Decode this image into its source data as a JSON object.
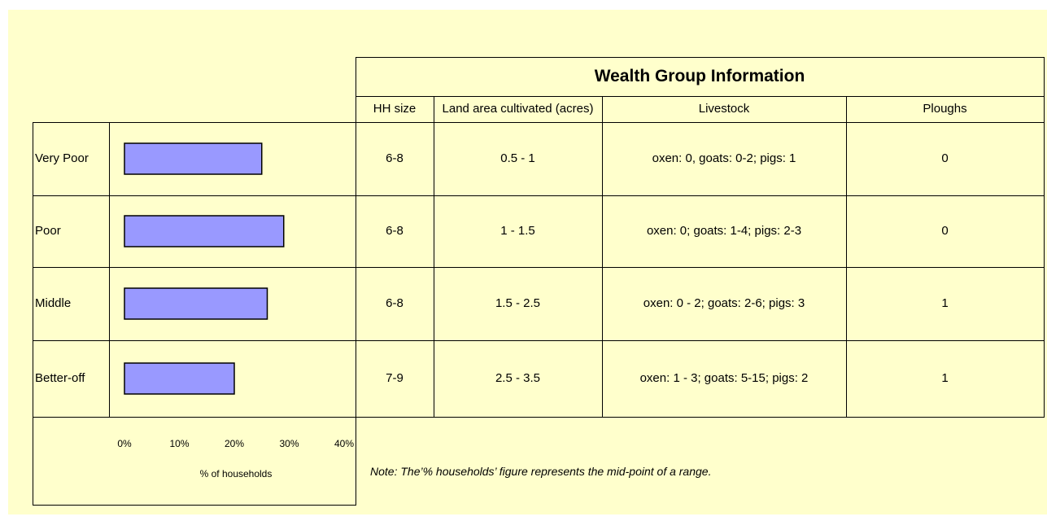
{
  "chart_data": {
    "type": "bar",
    "orientation": "horizontal",
    "categories": [
      "Very Poor",
      "Poor",
      "Middle",
      "Better-off"
    ],
    "values": [
      25,
      29,
      26,
      20
    ],
    "color": "#9999ff",
    "xlim": [
      0,
      40
    ],
    "xticks": [
      {
        "value": 0,
        "label": "0%"
      },
      {
        "value": 10,
        "label": "10%"
      },
      {
        "value": 20,
        "label": "20%"
      },
      {
        "value": 30,
        "label": "30%"
      },
      {
        "value": 40,
        "label": "40%"
      }
    ],
    "xlabel": "% of households"
  },
  "table": {
    "title": "Wealth Group Information",
    "columns": [
      "HH size",
      "Land area cultivated (acres)",
      "Livestock",
      "Ploughs"
    ],
    "rows": [
      [
        "6-8",
        "0.5 - 1",
        "oxen: 0, goats: 0-2; pigs: 1",
        "0"
      ],
      [
        "6-8",
        "1 - 1.5",
        "oxen: 0; goats: 1-4; pigs: 2-3",
        "0"
      ],
      [
        "6-8",
        "1.5 - 2.5",
        "oxen: 0 - 2; goats: 2-6; pigs: 3",
        "1"
      ],
      [
        "7-9",
        "2.5 - 3.5",
        "oxen: 1 - 3; goats: 5-15; pigs: 2",
        "1"
      ]
    ],
    "note": "Note: The’% households’ figure represents the mid-point of a range."
  }
}
